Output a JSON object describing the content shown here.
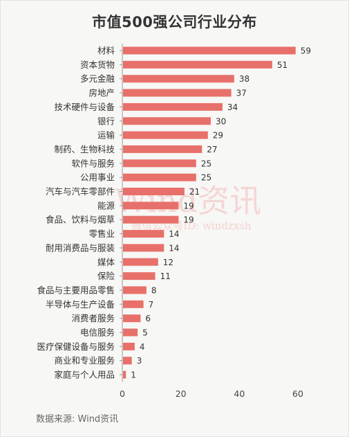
{
  "chart_data": {
    "type": "bar",
    "orientation": "horizontal",
    "title": "市值500强公司行业分布",
    "categories": [
      "材料",
      "资本货物",
      "多元金融",
      "房地产",
      "技术硬件与设备",
      "银行",
      "运输",
      "制药、生物科技",
      "软件与服务",
      "公用事业",
      "汽车与汽车零部件",
      "能源",
      "食品、饮料与烟草",
      "零售业",
      "耐用消费品与服装",
      "媒体",
      "保险",
      "食品与主要用品零售",
      "半导体与生产设备",
      "消费者服务",
      "电信服务",
      "医疗保健设备与服务",
      "商业和专业服务",
      "家庭与个人用品"
    ],
    "values": [
      59,
      51,
      38,
      37,
      34,
      30,
      29,
      27,
      25,
      25,
      21,
      19,
      19,
      14,
      14,
      12,
      11,
      8,
      7,
      6,
      5,
      4,
      3,
      1
    ],
    "xlim": [
      0,
      60
    ],
    "xticks": [
      0,
      20,
      40,
      60
    ],
    "bar_color": "#e8706a",
    "grid": false
  },
  "watermark": {
    "brand": "Wind资讯",
    "sub": "微信公众号ID: windzxsh"
  },
  "source": "数据来源: Wind资讯"
}
